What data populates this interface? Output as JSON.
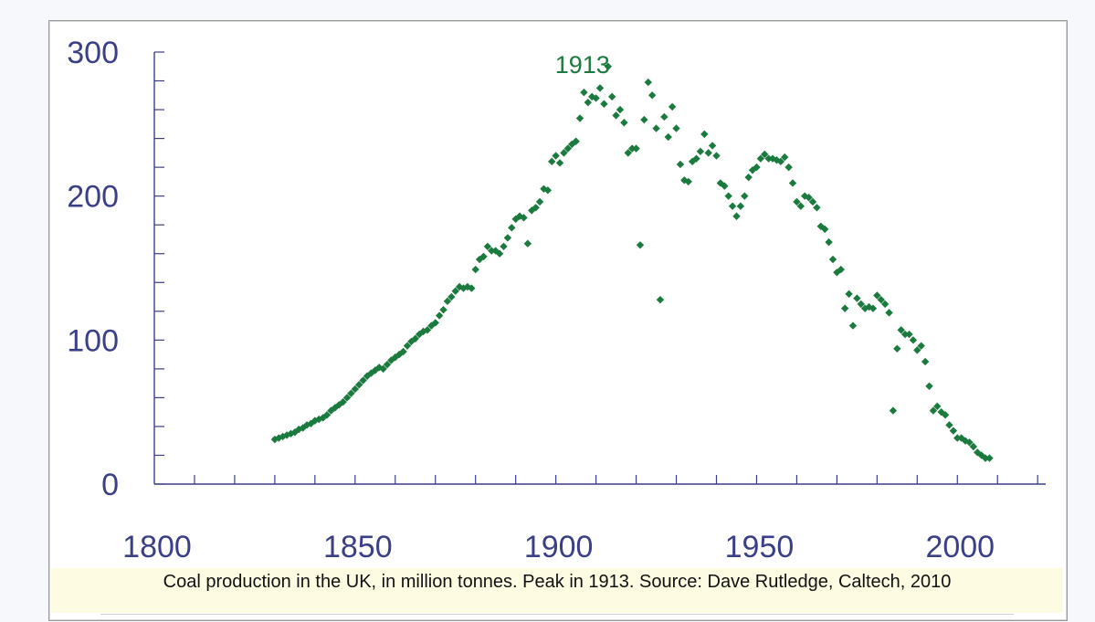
{
  "colors": {
    "axis": "#3b3f86",
    "points": "#1b7a3e",
    "caption_bg": "#fdfbe1"
  },
  "chart_data": {
    "type": "scatter",
    "title": "",
    "xlabel": "",
    "ylabel": "",
    "xlim": [
      1800,
      2022
    ],
    "ylim": [
      0,
      300
    ],
    "x_ticks": [
      "1800",
      "1850",
      "1900",
      "1950",
      "2000"
    ],
    "y_ticks": [
      "0",
      "100",
      "200",
      "300"
    ],
    "grid": false,
    "annotation": {
      "text": "1913",
      "x": 1913,
      "y": 290
    },
    "series": [
      {
        "marker": "diamond",
        "points": [
          [
            1830,
            31
          ],
          [
            1831,
            32
          ],
          [
            1832,
            33
          ],
          [
            1833,
            34
          ],
          [
            1834,
            35
          ],
          [
            1835,
            36
          ],
          [
            1836,
            38
          ],
          [
            1837,
            39
          ],
          [
            1838,
            41
          ],
          [
            1839,
            42
          ],
          [
            1840,
            44
          ],
          [
            1841,
            45
          ],
          [
            1842,
            46
          ],
          [
            1843,
            48
          ],
          [
            1844,
            51
          ],
          [
            1845,
            53
          ],
          [
            1846,
            55
          ],
          [
            1847,
            57
          ],
          [
            1848,
            60
          ],
          [
            1849,
            63
          ],
          [
            1850,
            66
          ],
          [
            1851,
            69
          ],
          [
            1852,
            72
          ],
          [
            1853,
            75
          ],
          [
            1854,
            77
          ],
          [
            1855,
            79
          ],
          [
            1856,
            81
          ],
          [
            1857,
            80
          ],
          [
            1858,
            83
          ],
          [
            1859,
            86
          ],
          [
            1860,
            88
          ],
          [
            1861,
            90
          ],
          [
            1862,
            92
          ],
          [
            1863,
            96
          ],
          [
            1864,
            99
          ],
          [
            1865,
            101
          ],
          [
            1866,
            104
          ],
          [
            1867,
            106
          ],
          [
            1868,
            107
          ],
          [
            1869,
            110
          ],
          [
            1870,
            112
          ],
          [
            1871,
            117
          ],
          [
            1872,
            121
          ],
          [
            1873,
            127
          ],
          [
            1874,
            130
          ],
          [
            1875,
            134
          ],
          [
            1876,
            137
          ],
          [
            1877,
            136
          ],
          [
            1878,
            137
          ],
          [
            1879,
            136
          ],
          [
            1880,
            149
          ],
          [
            1881,
            156
          ],
          [
            1882,
            158
          ],
          [
            1883,
            165
          ],
          [
            1884,
            162
          ],
          [
            1885,
            162
          ],
          [
            1886,
            160
          ],
          [
            1887,
            165
          ],
          [
            1888,
            171
          ],
          [
            1889,
            178
          ],
          [
            1890,
            184
          ],
          [
            1891,
            186
          ],
          [
            1892,
            185
          ],
          [
            1893,
            167
          ],
          [
            1894,
            190
          ],
          [
            1895,
            192
          ],
          [
            1896,
            196
          ],
          [
            1897,
            205
          ],
          [
            1898,
            204
          ],
          [
            1899,
            224
          ],
          [
            1900,
            228
          ],
          [
            1901,
            223
          ],
          [
            1902,
            230
          ],
          [
            1903,
            233
          ],
          [
            1904,
            236
          ],
          [
            1905,
            238
          ],
          [
            1906,
            254
          ],
          [
            1907,
            272
          ],
          [
            1908,
            265
          ],
          [
            1909,
            269
          ],
          [
            1910,
            268
          ],
          [
            1911,
            275
          ],
          [
            1912,
            264
          ],
          [
            1913,
            290
          ],
          [
            1914,
            269
          ],
          [
            1915,
            256
          ],
          [
            1916,
            260
          ],
          [
            1917,
            251
          ],
          [
            1918,
            230
          ],
          [
            1919,
            233
          ],
          [
            1920,
            233
          ],
          [
            1921,
            166
          ],
          [
            1922,
            253
          ],
          [
            1923,
            279
          ],
          [
            1924,
            270
          ],
          [
            1925,
            247
          ],
          [
            1926,
            128
          ],
          [
            1927,
            255
          ],
          [
            1928,
            241
          ],
          [
            1929,
            262
          ],
          [
            1930,
            247
          ],
          [
            1931,
            222
          ],
          [
            1932,
            211
          ],
          [
            1933,
            210
          ],
          [
            1934,
            224
          ],
          [
            1935,
            226
          ],
          [
            1936,
            231
          ],
          [
            1937,
            243
          ],
          [
            1938,
            230
          ],
          [
            1939,
            235
          ],
          [
            1940,
            228
          ],
          [
            1941,
            209
          ],
          [
            1942,
            207
          ],
          [
            1943,
            200
          ],
          [
            1944,
            193
          ],
          [
            1945,
            186
          ],
          [
            1946,
            193
          ],
          [
            1947,
            200
          ],
          [
            1948,
            213
          ],
          [
            1949,
            218
          ],
          [
            1950,
            220
          ],
          [
            1951,
            226
          ],
          [
            1952,
            229
          ],
          [
            1953,
            226
          ],
          [
            1954,
            226
          ],
          [
            1955,
            225
          ],
          [
            1956,
            224
          ],
          [
            1957,
            227
          ],
          [
            1958,
            220
          ],
          [
            1959,
            209
          ],
          [
            1960,
            196
          ],
          [
            1961,
            193
          ],
          [
            1962,
            200
          ],
          [
            1963,
            199
          ],
          [
            1964,
            196
          ],
          [
            1965,
            192
          ],
          [
            1966,
            179
          ],
          [
            1967,
            177
          ],
          [
            1968,
            168
          ],
          [
            1969,
            156
          ],
          [
            1970,
            147
          ],
          [
            1971,
            149
          ],
          [
            1972,
            122
          ],
          [
            1973,
            132
          ],
          [
            1974,
            110
          ],
          [
            1975,
            129
          ],
          [
            1976,
            125
          ],
          [
            1977,
            122
          ],
          [
            1978,
            123
          ],
          [
            1979,
            122
          ],
          [
            1980,
            131
          ],
          [
            1981,
            128
          ],
          [
            1982,
            125
          ],
          [
            1983,
            119
          ],
          [
            1984,
            51
          ],
          [
            1985,
            94
          ],
          [
            1986,
            107
          ],
          [
            1987,
            104
          ],
          [
            1988,
            104
          ],
          [
            1989,
            100
          ],
          [
            1990,
            93
          ],
          [
            1991,
            96
          ],
          [
            1992,
            85
          ],
          [
            1993,
            68
          ],
          [
            1994,
            51
          ],
          [
            1995,
            54
          ],
          [
            1996,
            50
          ],
          [
            1997,
            48
          ],
          [
            1998,
            41
          ],
          [
            1999,
            37
          ],
          [
            2000,
            32
          ],
          [
            2001,
            32
          ],
          [
            2002,
            30
          ],
          [
            2003,
            29
          ],
          [
            2004,
            26
          ],
          [
            2005,
            22
          ],
          [
            2006,
            20
          ],
          [
            2007,
            18
          ],
          [
            2008,
            18
          ]
        ]
      }
    ]
  },
  "caption": "Coal production in the UK, in million tonnes. Peak in 1913. Source: Dave Rutledge, Caltech, 2010"
}
